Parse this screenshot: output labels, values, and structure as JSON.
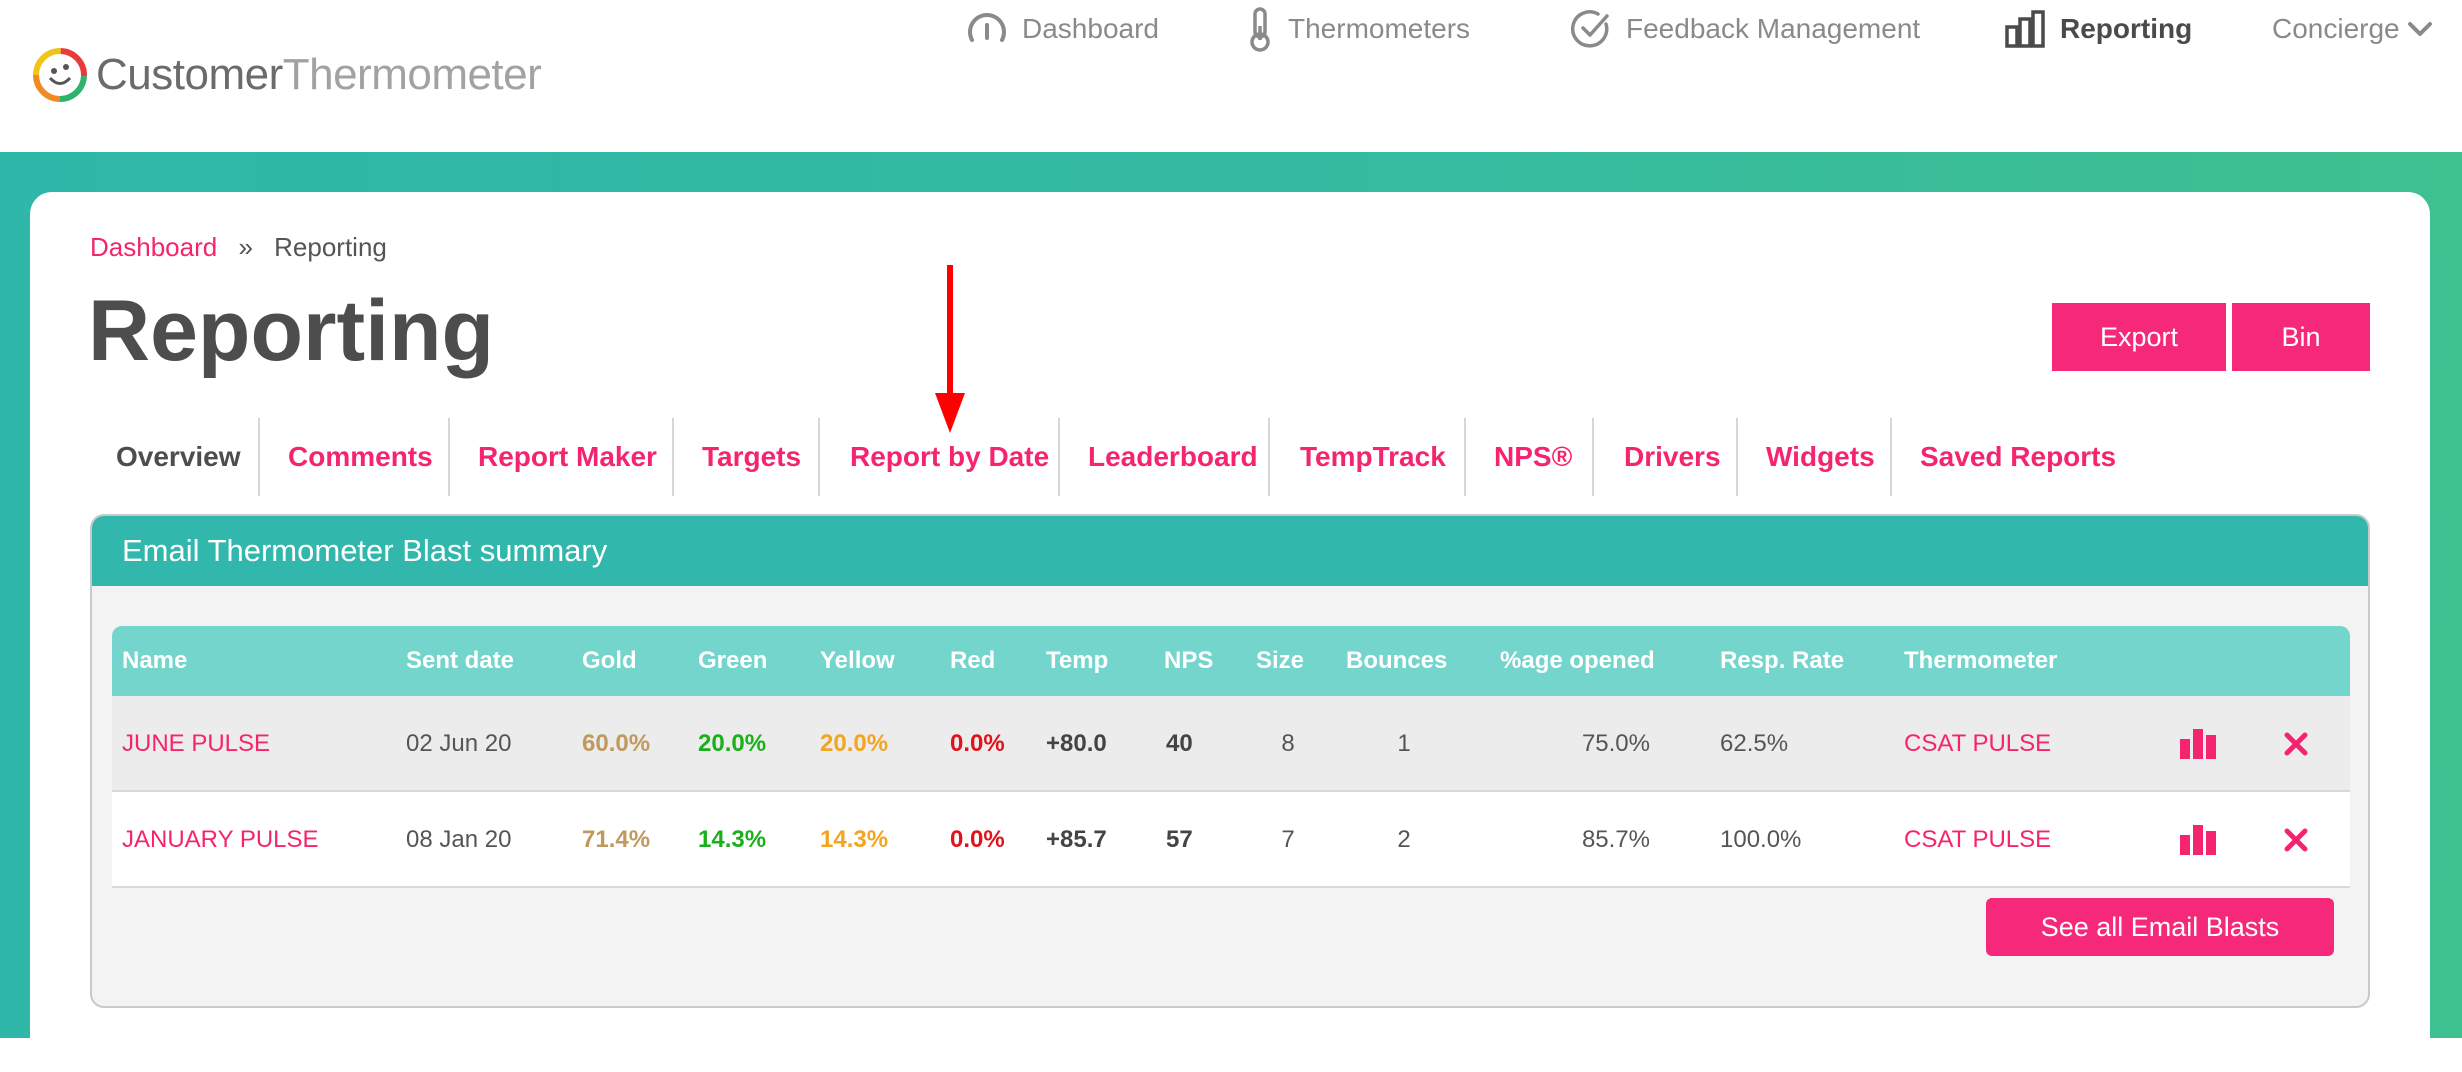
{
  "brand": {
    "name_part1": "Customer",
    "name_part2": "Thermometer"
  },
  "nav": {
    "dashboard": "Dashboard",
    "thermometers": "Thermometers",
    "feedback": "Feedback Management",
    "reporting": "Reporting",
    "concierge": "Concierge"
  },
  "breadcrumb": {
    "home": "Dashboard",
    "sep": "»",
    "current": "Reporting"
  },
  "page": {
    "title": "Reporting",
    "export_label": "Export",
    "bin_label": "Bin"
  },
  "tabs": [
    "Overview",
    "Comments",
    "Report Maker",
    "Targets",
    "Report by Date",
    "Leaderboard",
    "TempTrack",
    "NPS®",
    "Drivers",
    "Widgets",
    "Saved Reports"
  ],
  "panel": {
    "title": "Email Thermometer Blast summary",
    "columns": [
      "Name",
      "Sent date",
      "Gold",
      "Green",
      "Yellow",
      "Red",
      "Temp",
      "NPS",
      "Size",
      "Bounces",
      "%age opened",
      "Resp. Rate",
      "Thermometer"
    ],
    "rows": [
      {
        "name": "JUNE PULSE",
        "sent": "02 Jun 20",
        "gold": "60.0%",
        "green": "20.0%",
        "yellow": "20.0%",
        "red": "0.0%",
        "temp": "+80.0",
        "nps": "40",
        "size": "8",
        "bounces": "1",
        "opened": "75.0%",
        "resp": "62.5%",
        "thermometer": "CSAT PULSE"
      },
      {
        "name": "JANUARY PULSE",
        "sent": "08 Jan 20",
        "gold": "71.4%",
        "green": "14.3%",
        "yellow": "14.3%",
        "red": "0.0%",
        "temp": "+85.7",
        "nps": "57",
        "size": "7",
        "bounces": "2",
        "opened": "85.7%",
        "resp": "100.0%",
        "thermometer": "CSAT PULSE"
      }
    ],
    "see_all_label": "See all Email Blasts"
  },
  "colors": {
    "accent_pink": "#f5287a",
    "teal": "#32b7ac",
    "teal_light": "#74d5cc",
    "annotation_red": "#ff0000"
  }
}
